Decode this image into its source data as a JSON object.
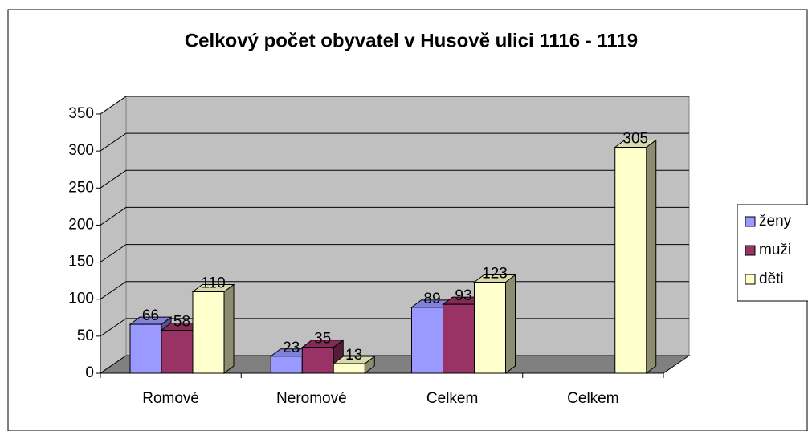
{
  "chart_data": {
    "type": "bar3d",
    "title": "Celkový počet obyvatel v Husově ulici 1116 - 1119",
    "categories": [
      "Romové",
      "Neromové",
      "Celkem",
      "Celkem"
    ],
    "series": [
      {
        "name": "ženy",
        "color": "#9999ff",
        "values": [
          66,
          23,
          89,
          null
        ]
      },
      {
        "name": "muži",
        "color": "#993366",
        "values": [
          58,
          35,
          93,
          null
        ]
      },
      {
        "name": "děti",
        "color": "#ffffcc",
        "values": [
          110,
          13,
          123,
          305
        ]
      }
    ],
    "ylim": [
      0,
      350
    ],
    "yticks": [
      0,
      50,
      100,
      150,
      200,
      250,
      300,
      350
    ],
    "grid": true,
    "legend": "right"
  }
}
